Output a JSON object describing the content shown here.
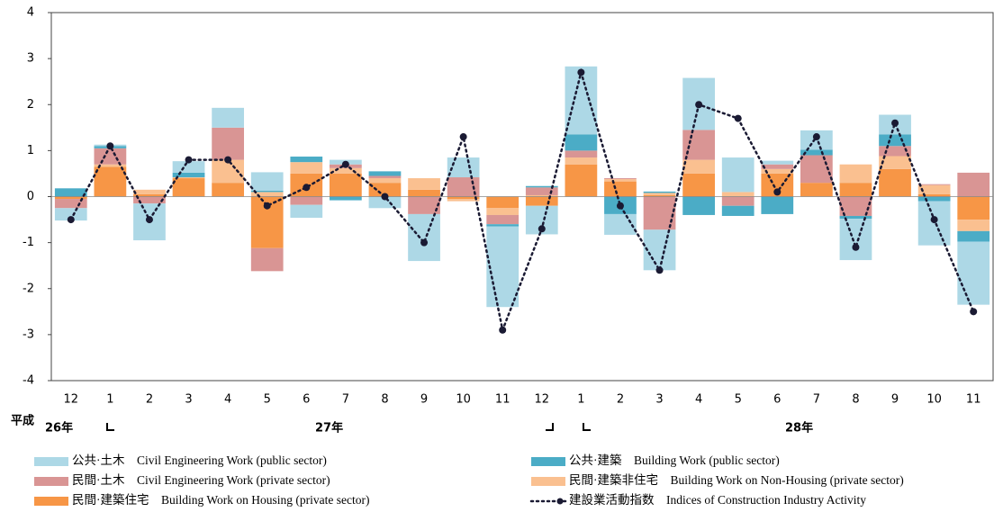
{
  "chart_data": {
    "type": "bar",
    "categories": [
      "12",
      "1",
      "2",
      "3",
      "4",
      "5",
      "6",
      "7",
      "8",
      "9",
      "10",
      "11",
      "12",
      "1",
      "2",
      "3",
      "4",
      "5",
      "6",
      "7",
      "8",
      "9",
      "10",
      "11"
    ],
    "series": [
      {
        "name": "民間·建築住宅　Building Work on Housing (private sector)",
        "color": "#f79646",
        "values": [
          -0.05,
          0.65,
          0.05,
          0.4,
          0.3,
          -1.12,
          0.5,
          0.5,
          0.3,
          0.15,
          -0.05,
          -0.25,
          -0.2,
          0.7,
          0.33,
          0.03,
          0.5,
          0,
          0.5,
          0.3,
          0.3,
          0.6,
          0.05,
          -0.5
        ]
      },
      {
        "name": "民間·建築非住宅　Building Work on Non-Housing (private sector)",
        "color": "#fac090",
        "values": [
          0,
          0.05,
          0.1,
          0.02,
          0.5,
          0.1,
          0.25,
          0.12,
          0.1,
          0.25,
          -0.05,
          -0.15,
          0.03,
          0.15,
          0.05,
          0.05,
          0.3,
          0.1,
          0.1,
          0,
          0.4,
          0.28,
          0.2,
          -0.25
        ]
      },
      {
        "name": "民間·土木　Civil Engineering Work (private sector)",
        "color": "#d99594",
        "values": [
          -0.2,
          0.35,
          -0.15,
          0,
          0.7,
          -0.5,
          -0.18,
          0.08,
          0.05,
          -0.38,
          0.42,
          -0.2,
          0.17,
          0.15,
          0.02,
          -0.72,
          0.65,
          -0.2,
          0.1,
          0.6,
          -0.42,
          0.22,
          0.02,
          0.52
        ]
      },
      {
        "name": "公共·建築　Building Work (public sector)",
        "color": "#4bacc6",
        "values": [
          0.18,
          0.05,
          0,
          0.1,
          0,
          0.03,
          0.12,
          -0.08,
          0.1,
          0,
          0,
          -0.05,
          0.03,
          0.35,
          -0.38,
          0.03,
          -0.4,
          -0.22,
          -0.38,
          0.12,
          -0.06,
          0.25,
          -0.1,
          -0.23
        ]
      },
      {
        "name": "公共·土木　Civil Engineering Work (public sector)",
        "color": "#add8e6",
        "values": [
          -0.27,
          0.03,
          -0.8,
          0.25,
          0.43,
          0.4,
          -0.28,
          0.1,
          -0.25,
          -1.02,
          0.43,
          -1.75,
          -0.62,
          1.48,
          -0.45,
          -0.88,
          1.13,
          0.75,
          0.08,
          0.42,
          -0.9,
          0.43,
          -0.96,
          -1.37
        ]
      }
    ],
    "line": {
      "name": "建設業活動指数　Indices of Construction Industry Activity",
      "color": "#1a1a33",
      "values": [
        -0.5,
        1.1,
        -0.5,
        0.8,
        0.8,
        -0.2,
        0.2,
        0.7,
        0,
        -1,
        1.3,
        -2.9,
        -0.7,
        2.7,
        -0.2,
        -1.6,
        2,
        1.7,
        0.1,
        1.3,
        -1.1,
        1.6,
        -0.5,
        -2.5
      ]
    },
    "era_label": "平成",
    "year_labels": [
      "26年",
      "27年",
      "28年"
    ],
    "ylim": [
      -4,
      4
    ],
    "yticks": [
      -4,
      -3,
      -2,
      -1,
      0,
      1,
      2,
      3,
      4
    ]
  }
}
